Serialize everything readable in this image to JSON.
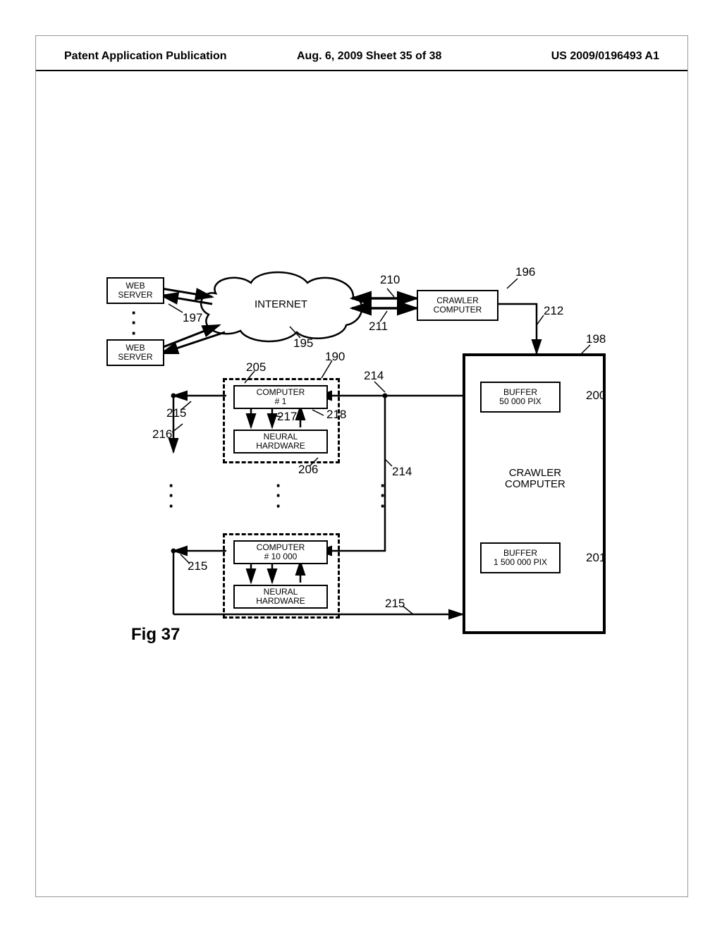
{
  "header": {
    "left": "Patent Application Publication",
    "center": "Aug. 6, 2009  Sheet 35 of 38",
    "right": "US 2009/0196493 A1"
  },
  "figure_label": "Fig 37",
  "nodes": {
    "web_server_1": "WEB\nSERVER",
    "web_server_2": "WEB\nSERVER",
    "internet": "INTERNET",
    "crawler_top": "CRAWLER\nCOMPUTER",
    "crawler_main": "CRAWLER\nCOMPUTER",
    "buffer_1": "BUFFER\n50 000 PIX",
    "buffer_2": "BUFFER\n1 500 000 PIX",
    "computer_1": "COMPUTER\n# 1",
    "neural_1": "NEURAL\nHARDWARE",
    "computer_n": "COMPUTER\n# 10 000",
    "neural_n": "NEURAL\nHARDWARE"
  },
  "refs": {
    "190": "190",
    "195": "195",
    "196": "196",
    "197": "197",
    "198": "198",
    "200": "200",
    "201": "201",
    "205": "205",
    "206": "206",
    "210": "210",
    "211": "211",
    "212": "212",
    "214a": "214",
    "214b": "214",
    "215a": "215",
    "215b": "215",
    "215c": "215",
    "216": "216",
    "217": "217",
    "218": "218"
  },
  "colors": {
    "stroke": "#000000",
    "background": "#ffffff"
  }
}
